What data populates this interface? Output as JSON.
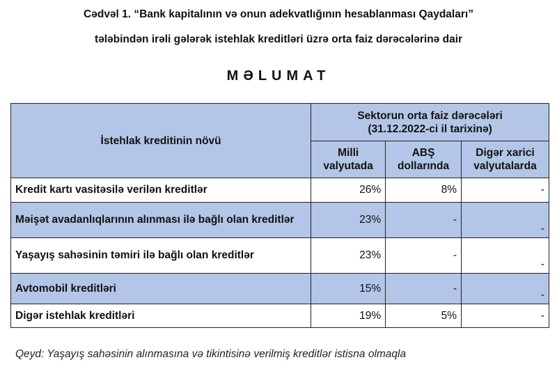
{
  "title_lines": [
    "Cədvəl 1. “Bank kapitalının və onun adekvatlığının hesablanması Qaydaları”",
    "tələbindən irəli gələrək istehlak kreditləri üzrə orta faiz dərəcələrinə dair"
  ],
  "heading": "MƏLUMAT",
  "table": {
    "header": {
      "type_col": "İstehlak kreditinin növü",
      "group_line1": "Sektorun orta faiz dərəcələri",
      "group_line2": "(31.12.2022-ci il tarixinə)",
      "cols": [
        {
          "line1": "Milli",
          "line2": "valyutada"
        },
        {
          "line1": "ABŞ",
          "line2": "dollarında"
        },
        {
          "line1": "Digər xarici",
          "line2": "valyutalarda"
        }
      ]
    },
    "rows": [
      {
        "label": "Kredit kartı vasitəsilə verilən kreditlər",
        "values": [
          "26%",
          "8%",
          "-"
        ]
      },
      {
        "label": "Məişət avadanlıqlarının alınması ilə bağlı olan kreditlər",
        "values": [
          "23%",
          "-",
          "-"
        ]
      },
      {
        "label": "Yaşayış sahəsinin təmiri ilə bağlı olan kreditlər",
        "values": [
          "23%",
          "-",
          "-"
        ]
      },
      {
        "label": "Avtomobil kreditləri",
        "values": [
          "15%",
          "-",
          "-"
        ]
      },
      {
        "label": "Digər istehlak kreditləri",
        "values": [
          "19%",
          "5%",
          "-"
        ]
      }
    ]
  },
  "note": "Qeyd: Yaşayış sahəsinin alınmasına və tikintisinə verilmiş kreditlər istisna olmaqla",
  "colors": {
    "header_fill": "#b4c6e7",
    "border": "#222222"
  }
}
